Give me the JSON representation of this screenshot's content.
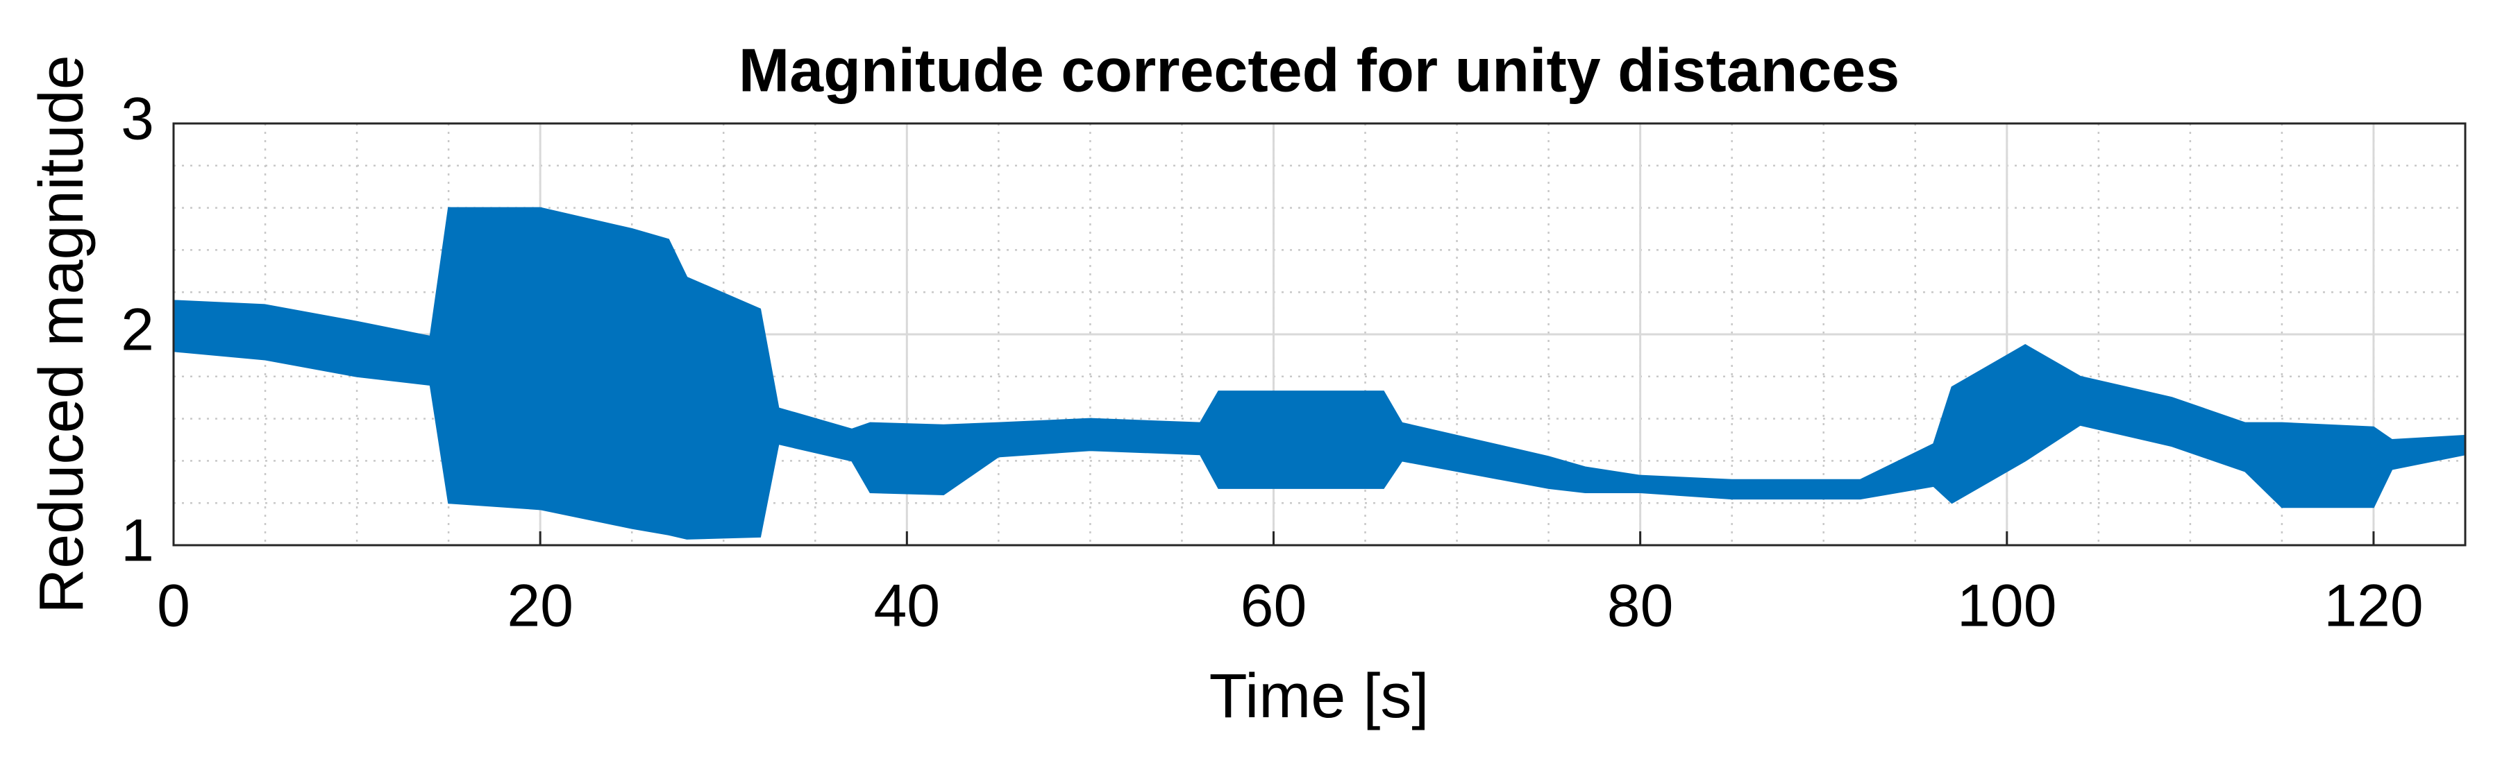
{
  "chart_data": {
    "type": "band",
    "title": "Magnitude corrected for unity distances",
    "xlabel": "Time [s]",
    "ylabel": "Reduced magnitude",
    "x": [
      0,
      5,
      10,
      14,
      15,
      20,
      25,
      27,
      28,
      32,
      33,
      37,
      38,
      42,
      45,
      50,
      56,
      57,
      66,
      67,
      75,
      77,
      80,
      85,
      92,
      96,
      97,
      101,
      104,
      109,
      113,
      115,
      120,
      121,
      125
    ],
    "upper": [
      2.16,
      2.14,
      2.06,
      1.99,
      2.6,
      2.6,
      2.5,
      2.45,
      2.27,
      2.12,
      1.65,
      1.55,
      1.58,
      1.57,
      1.58,
      1.6,
      1.58,
      1.73,
      1.73,
      1.58,
      1.42,
      1.37,
      1.33,
      1.31,
      1.31,
      1.48,
      1.75,
      1.95,
      1.8,
      1.7,
      1.58,
      1.58,
      1.56,
      1.5,
      1.52
    ],
    "lower": [
      1.92,
      1.88,
      1.8,
      1.76,
      1.2,
      1.17,
      1.08,
      1.05,
      1.03,
      1.04,
      1.48,
      1.4,
      1.25,
      1.24,
      1.42,
      1.45,
      1.43,
      1.27,
      1.27,
      1.4,
      1.27,
      1.25,
      1.25,
      1.22,
      1.22,
      1.28,
      1.2,
      1.4,
      1.57,
      1.47,
      1.35,
      1.18,
      1.18,
      1.36,
      1.43
    ],
    "color": "#0072bd",
    "xlim": [
      0,
      125
    ],
    "xticks": [
      0,
      20,
      40,
      60,
      80,
      100,
      120
    ],
    "ylim": [
      1,
      3
    ],
    "yticks": [
      1,
      2,
      3
    ],
    "grid": true,
    "minor_grid": true
  }
}
